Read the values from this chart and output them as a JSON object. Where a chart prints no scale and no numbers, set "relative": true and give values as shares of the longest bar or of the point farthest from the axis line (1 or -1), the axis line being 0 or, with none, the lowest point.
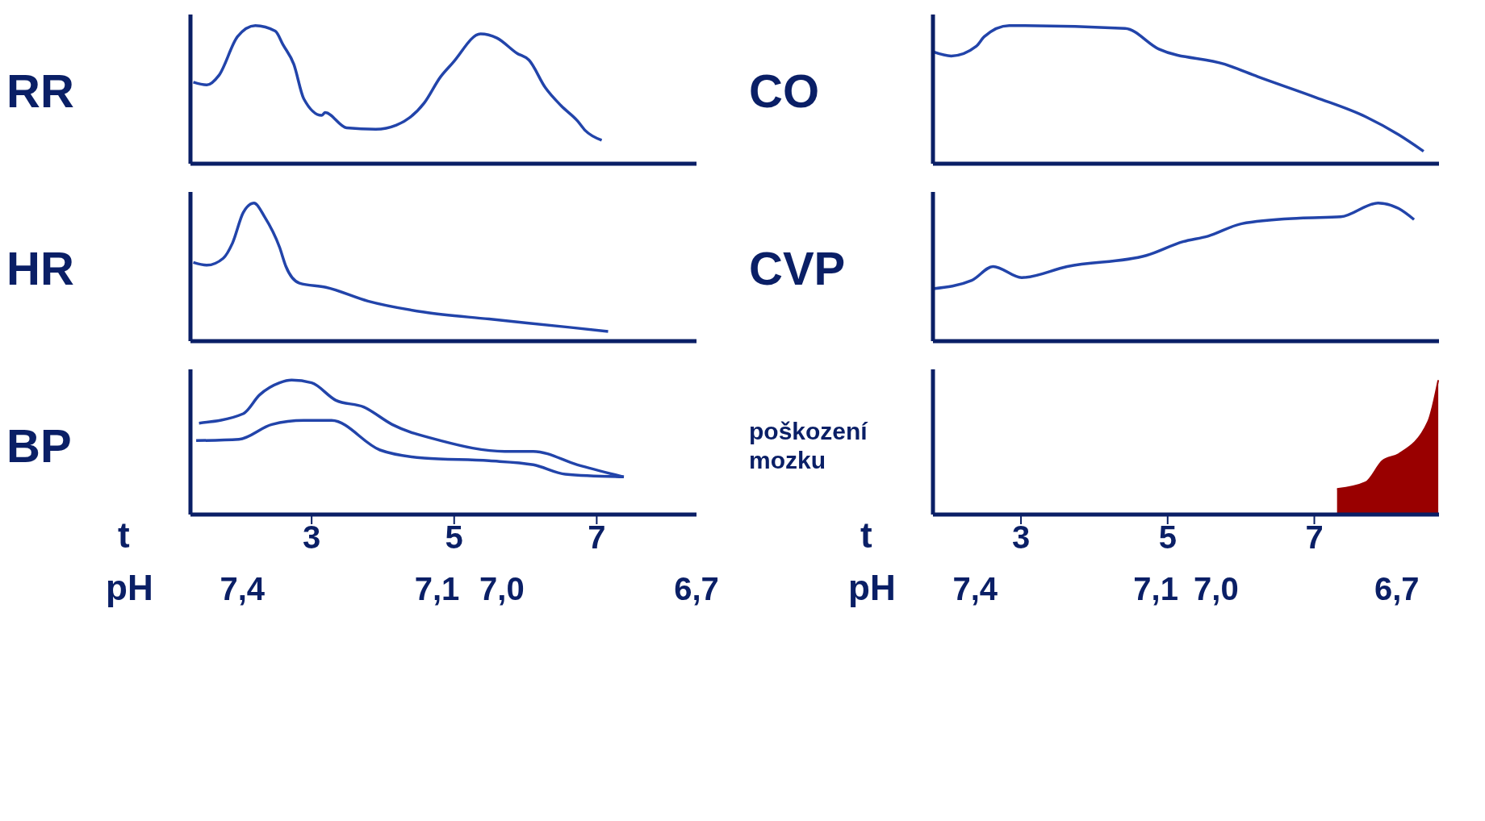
{
  "chart_data": [
    {
      "type": "line",
      "ylabel": "RR",
      "relative": true,
      "xlim": [
        1.3,
        8.4
      ],
      "tick_labels": false,
      "series": [
        {
          "color": "#2244aa",
          "x": [
            1.34,
            1.53,
            1.7,
            1.96,
            2.21,
            2.49,
            2.6,
            2.75,
            2.89,
            3.14,
            3.19,
            3.49,
            3.9,
            4.19,
            4.58,
            4.81,
            4.98,
            5.37,
            5.6,
            5.88,
            6.05,
            6.28,
            6.5,
            6.73,
            6.84,
            7.07
          ],
          "values": [
            0.59,
            0.57,
            0.64,
            0.92,
            1,
            0.96,
            0.86,
            0.72,
            0.47,
            0.35,
            0.37,
            0.26,
            0.25,
            0.28,
            0.44,
            0.63,
            0.73,
            0.94,
            0.91,
            0.8,
            0.75,
            0.55,
            0.42,
            0.31,
            0.24,
            0.17
          ]
        }
      ]
    },
    {
      "type": "line",
      "ylabel": "HR",
      "relative": true,
      "xlim": [
        1.3,
        8.4
      ],
      "tick_labels": false,
      "series": [
        {
          "color": "#2244aa",
          "x": [
            1.34,
            1.53,
            1.76,
            1.89,
            2.04,
            2.19,
            2.34,
            2.55,
            2.64,
            2.83,
            3.2,
            3.79,
            4.58,
            5.49,
            6.62,
            7.16
          ],
          "values": [
            0.57,
            0.55,
            0.6,
            0.71,
            0.93,
            1,
            0.9,
            0.68,
            0.54,
            0.42,
            0.39,
            0.29,
            0.21,
            0.16,
            0.1,
            0.07
          ]
        }
      ]
    },
    {
      "type": "line",
      "ylabel": "BP",
      "relative": true,
      "xlim": [
        1.3,
        8.4
      ],
      "tick_labels": "x",
      "xlabel": "t",
      "xticks": [
        3,
        5,
        7
      ],
      "x2label": "pH",
      "x2lim": [
        7.48,
        6.7
      ],
      "x2ticks": [
        {
          "value": 7.4,
          "label": "7,4"
        },
        {
          "value": 7.1,
          "label": "7,1"
        },
        {
          "value": 7.0,
          "label": "7,0"
        },
        {
          "value": 6.7,
          "label": "6,7"
        }
      ],
      "series": [
        {
          "color": "#2244aa",
          "x": [
            1.42,
            2.04,
            2.27,
            2.55,
            2.72,
            3,
            3.34,
            3.73,
            4.13,
            4.81,
            5.71,
            6.11,
            6.73,
            7.38
          ],
          "values": [
            0.68,
            0.75,
            0.89,
            0.98,
            1,
            0.98,
            0.85,
            0.8,
            0.67,
            0.55,
            0.47,
            0.47,
            0.37,
            0.28
          ]
        },
        {
          "color": "#2244aa",
          "x": [
            1.38,
            1.98,
            2.44,
            2.89,
            3.28,
            3.96,
            4.58,
            5.49,
            6.11,
            6.56,
            7.38
          ],
          "values": [
            0.55,
            0.56,
            0.67,
            0.7,
            0.7,
            0.48,
            0.42,
            0.4,
            0.37,
            0.3,
            0.28
          ]
        }
      ]
    },
    {
      "type": "line",
      "ylabel": "CO",
      "relative": true,
      "xlim": [
        1.8,
        8.7
      ],
      "tick_labels": false,
      "series": [
        {
          "color": "#2244aa",
          "x": [
            1.8,
            2.05,
            2.39,
            2.5,
            2.84,
            4.42,
            4.88,
            5.78,
            6.23,
            7.02,
            7.7,
            8.15,
            8.49
          ],
          "values": [
            0.81,
            0.78,
            0.85,
            0.92,
            1,
            0.98,
            0.83,
            0.72,
            0.63,
            0.48,
            0.34,
            0.21,
            0.09
          ]
        }
      ]
    },
    {
      "type": "line",
      "ylabel": "CVP",
      "relative": true,
      "xlim": [
        1.8,
        8.7
      ],
      "tick_labels": false,
      "series": [
        {
          "color": "#2244aa",
          "x": [
            1.8,
            2.33,
            2.62,
            3.01,
            3.63,
            4.71,
            5.21,
            5.55,
            6.01,
            6.8,
            7.36,
            7.87,
            8.15,
            8.36
          ],
          "values": [
            0.38,
            0.44,
            0.54,
            0.46,
            0.54,
            0.62,
            0.72,
            0.76,
            0.85,
            0.89,
            0.9,
            1,
            0.96,
            0.88
          ]
        }
      ]
    },
    {
      "type": "area",
      "ylabel": "poškození mozku",
      "relative": true,
      "xlim": [
        1.8,
        8.7
      ],
      "tick_labels": "x",
      "xlabel": "t",
      "xticks": [
        3,
        5,
        7
      ],
      "x2label": "pH",
      "x2lim": [
        7.47,
        6.63
      ],
      "x2ticks": [
        {
          "value": 7.4,
          "label": "7,4"
        },
        {
          "value": 7.1,
          "label": "7,1"
        },
        {
          "value": 7.0,
          "label": "7,0"
        },
        {
          "value": 6.7,
          "label": "6,7"
        }
      ],
      "series": [
        {
          "color": "#990000",
          "x": [
            7.31,
            7.7,
            7.93,
            8.15,
            8.55,
            8.69
          ],
          "values": [
            0.19,
            0.24,
            0.4,
            0.45,
            0.69,
            1
          ]
        }
      ]
    }
  ]
}
